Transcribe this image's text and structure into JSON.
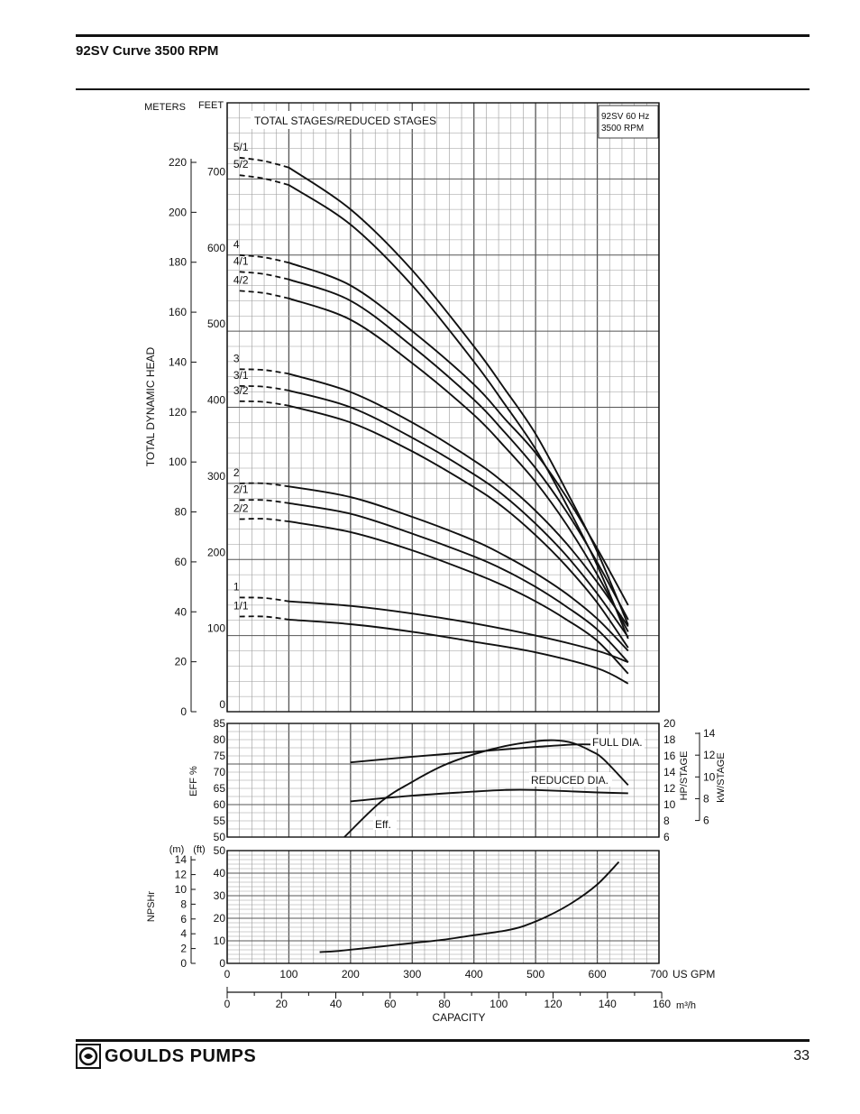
{
  "page": {
    "title": "92SV Curve 3500 RPM",
    "brand": "GOULDS PUMPS",
    "page_number": "33"
  },
  "chart_data": {
    "type": "line",
    "model_box": [
      "92SV  60 Hz",
      "3500 RPM"
    ],
    "head_panel": {
      "units": {
        "meters": "METERS",
        "feet": "FEET"
      },
      "ylabel": "TOTAL DYNAMIC HEAD",
      "legend_title": "TOTAL STAGES/REDUCED STAGES",
      "meters_ticks": [
        0,
        20,
        40,
        60,
        80,
        100,
        120,
        140,
        160,
        180,
        200,
        220
      ],
      "feet_ticks": [
        0,
        100,
        200,
        300,
        400,
        500,
        600,
        700
      ],
      "ylim_ft": [
        0,
        800
      ],
      "series": [
        {
          "name": "5/1",
          "shutoff_ft": 728,
          "x": [
            100,
            200,
            300,
            400,
            450,
            500,
            550,
            600,
            650
          ],
          "y": [
            715,
            660,
            580,
            480,
            424,
            365,
            290,
            210,
            114
          ]
        },
        {
          "name": "5/2",
          "shutoff_ft": 705,
          "x": [
            100,
            200,
            300,
            400,
            450,
            500,
            550,
            600,
            650
          ],
          "y": [
            692,
            640,
            560,
            460,
            404,
            345,
            272,
            192,
            96
          ]
        },
        {
          "name": "4",
          "shutoff_ft": 600,
          "x": [
            100,
            200,
            300,
            400,
            450,
            500,
            550,
            600,
            650
          ],
          "y": [
            590,
            560,
            500,
            430,
            385,
            340,
            282,
            214,
            140
          ]
        },
        {
          "name": "4/1",
          "shutoff_ft": 578,
          "x": [
            100,
            200,
            300,
            400,
            450,
            500,
            550,
            600,
            650
          ],
          "y": [
            568,
            540,
            480,
            410,
            367,
            320,
            263,
            196,
            121
          ]
        },
        {
          "name": "4/2",
          "shutoff_ft": 553,
          "x": [
            100,
            200,
            300,
            400,
            450,
            500,
            550,
            600,
            650
          ],
          "y": [
            543,
            515,
            458,
            390,
            348,
            302,
            246,
            180,
            105
          ]
        },
        {
          "name": "3",
          "shutoff_ft": 450,
          "x": [
            100,
            200,
            300,
            400,
            450,
            500,
            550,
            600,
            650
          ],
          "y": [
            444,
            420,
            380,
            330,
            300,
            264,
            221,
            170,
            112
          ]
        },
        {
          "name": "3/1",
          "shutoff_ft": 428,
          "x": [
            100,
            200,
            300,
            400,
            450,
            500,
            550,
            600,
            650
          ],
          "y": [
            422,
            400,
            360,
            312,
            283,
            247,
            205,
            155,
            98
          ]
        },
        {
          "name": "3/2",
          "shutoff_ft": 408,
          "x": [
            100,
            200,
            300,
            400,
            450,
            500,
            550,
            600,
            650
          ],
          "y": [
            402,
            380,
            342,
            295,
            267,
            232,
            191,
            143,
            84
          ]
        },
        {
          "name": "2",
          "shutoff_ft": 300,
          "x": [
            100,
            200,
            300,
            400,
            450,
            500,
            550,
            600,
            650
          ],
          "y": [
            296,
            282,
            256,
            225,
            205,
            182,
            155,
            122,
            80
          ]
        },
        {
          "name": "2/1",
          "shutoff_ft": 278,
          "x": [
            100,
            200,
            300,
            400,
            450,
            500,
            550,
            600,
            650
          ],
          "y": [
            274,
            260,
            234,
            204,
            186,
            164,
            138,
            108,
            65
          ]
        },
        {
          "name": "2/2",
          "shutoff_ft": 253,
          "x": [
            100,
            200,
            300,
            400,
            450,
            500,
            550,
            600,
            650
          ],
          "y": [
            250,
            236,
            212,
            182,
            165,
            145,
            121,
            93,
            50
          ]
        },
        {
          "name": "1",
          "shutoff_ft": 150,
          "x": [
            100,
            200,
            300,
            400,
            500,
            600,
            650
          ],
          "y": [
            145,
            139,
            129,
            116,
            100,
            80,
            65
          ]
        },
        {
          "name": "1/1",
          "shutoff_ft": 125,
          "x": [
            100,
            200,
            300,
            400,
            500,
            600,
            650
          ],
          "y": [
            121,
            115,
            105,
            92,
            78,
            57,
            37
          ]
        }
      ]
    },
    "eff_panel": {
      "ylabel": "EFF %",
      "eff_ticks": [
        50,
        55,
        60,
        65,
        70,
        75,
        80,
        85
      ],
      "ylim": [
        50,
        85
      ],
      "hp_label": "HP/STAGE",
      "hp_ticks": [
        6,
        8,
        10,
        12,
        14,
        16,
        18,
        20
      ],
      "hp_lim": [
        6,
        20
      ],
      "kw_label": "kW/STAGE",
      "kw_ticks": [
        6,
        8,
        10,
        12,
        14
      ],
      "series": [
        {
          "name": "Eff.",
          "x": [
            190,
            250,
            300,
            350,
            400,
            450,
            500,
            530,
            560,
            590,
            610,
            650
          ],
          "y": [
            50,
            61,
            67,
            72,
            75.5,
            78,
            79.5,
            79.8,
            79,
            76.5,
            74,
            66
          ]
        },
        {
          "name": "FULL DIA.",
          "x": [
            200,
            300,
            400,
            500,
            560,
            600,
            650
          ],
          "hp": [
            15.2,
            15.9,
            16.5,
            17.1,
            17.4,
            17.4,
            17.3
          ]
        },
        {
          "name": "REDUCED DIA.",
          "x": [
            200,
            300,
            400,
            450,
            500,
            600,
            650
          ],
          "hp": [
            10.4,
            11.1,
            11.6,
            11.8,
            11.8,
            11.5,
            11.4
          ]
        }
      ]
    },
    "npsh_panel": {
      "ylabel": "NPSHr",
      "units": {
        "meters": "(m)",
        "feet": "(ft)"
      },
      "meters_ticks": [
        0,
        2,
        4,
        6,
        8,
        10,
        12,
        14
      ],
      "feet_ticks": [
        0,
        10,
        20,
        30,
        40,
        50
      ],
      "ylim_ft": [
        0,
        50
      ],
      "series": [
        {
          "name": "NPSHr",
          "x": [
            150,
            180,
            250,
            300,
            350,
            400,
            450,
            480,
            520,
            560,
            600,
            635
          ],
          "y": [
            5,
            5.5,
            7.5,
            9,
            10.5,
            12.5,
            14.5,
            16.5,
            21,
            27,
            35,
            45
          ]
        }
      ]
    },
    "x_axis": {
      "gpm_ticks": [
        0,
        100,
        200,
        300,
        400,
        500,
        600,
        700
      ],
      "gpm_unit": "US GPM",
      "xlim_gpm": [
        0,
        700
      ],
      "m3h_ticks": [
        0,
        20,
        40,
        60,
        80,
        100,
        120,
        140,
        160
      ],
      "m3h_unit": "m³/h",
      "xlabel": "CAPACITY"
    }
  }
}
